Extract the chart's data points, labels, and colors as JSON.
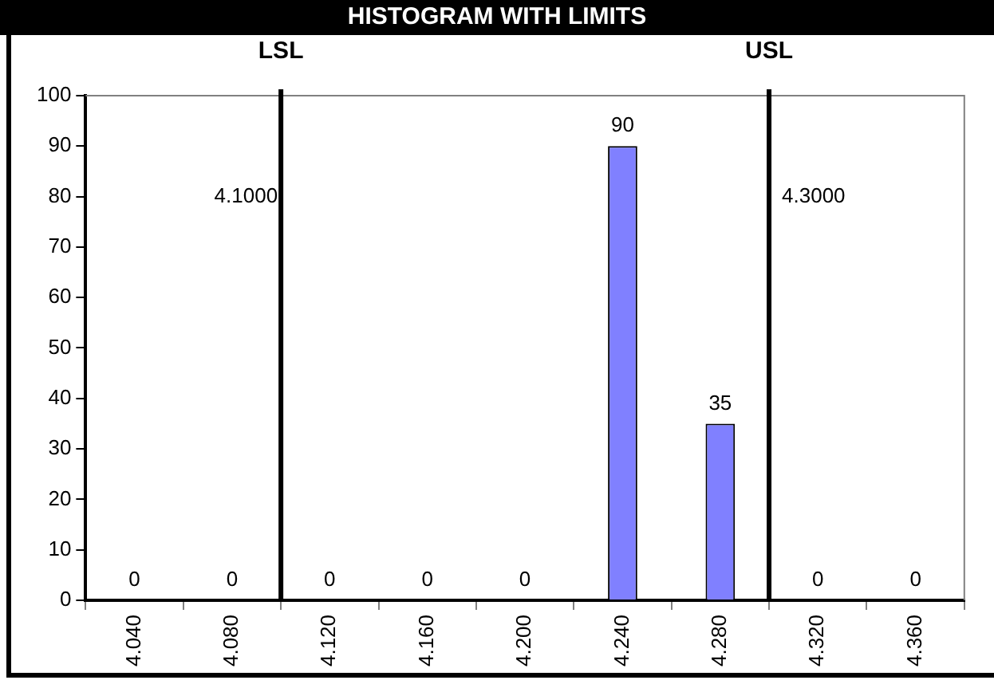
{
  "chart_data": {
    "type": "histogram",
    "title": "HISTOGRAM WITH LIMITS",
    "bins": [
      4.02,
      4.06,
      4.1,
      4.14,
      4.18,
      4.22,
      4.26,
      4.3,
      4.34,
      4.38
    ],
    "values": [
      0,
      0,
      0,
      0,
      0,
      90,
      35,
      0,
      0
    ],
    "color": "#8080ff",
    "xlim": [
      4.02,
      4.38
    ],
    "xticks": [
      {
        "value": 4.02,
        "label": null
      },
      {
        "value": 4.04,
        "label": "4.040"
      },
      {
        "value": 4.06,
        "label": null
      },
      {
        "value": 4.08,
        "label": "4.080"
      },
      {
        "value": 4.1,
        "label": null
      },
      {
        "value": 4.12,
        "label": "4.120"
      },
      {
        "value": 4.14,
        "label": null
      },
      {
        "value": 4.16,
        "label": "4.160"
      },
      {
        "value": 4.18,
        "label": null
      },
      {
        "value": 4.2,
        "label": "4.200"
      },
      {
        "value": 4.22,
        "label": null
      },
      {
        "value": 4.24,
        "label": "4.240"
      },
      {
        "value": 4.26,
        "label": null
      },
      {
        "value": 4.28,
        "label": "4.280"
      },
      {
        "value": 4.3,
        "label": null
      },
      {
        "value": 4.32,
        "label": "4.320"
      },
      {
        "value": 4.34,
        "label": null
      },
      {
        "value": 4.36,
        "label": "4.360"
      },
      {
        "value": 4.38,
        "label": null
      }
    ],
    "ylim": [
      0,
      100
    ],
    "yticks": [
      0,
      10,
      20,
      30,
      40,
      50,
      60,
      70,
      80,
      90,
      100
    ],
    "ref_lines": [
      {
        "axis": "x",
        "value": 4.1,
        "label": "LSL",
        "color": "#000000"
      },
      {
        "axis": "x",
        "value": 4.3,
        "label": "USL",
        "color": "#000000"
      }
    ],
    "annotations": [
      {
        "text": "4.1000",
        "x": 4.1,
        "y": 80
      },
      {
        "text": "4.3000",
        "x": 4.3,
        "y": 80
      }
    ],
    "data_labels": true,
    "grid": false,
    "legend": false
  }
}
